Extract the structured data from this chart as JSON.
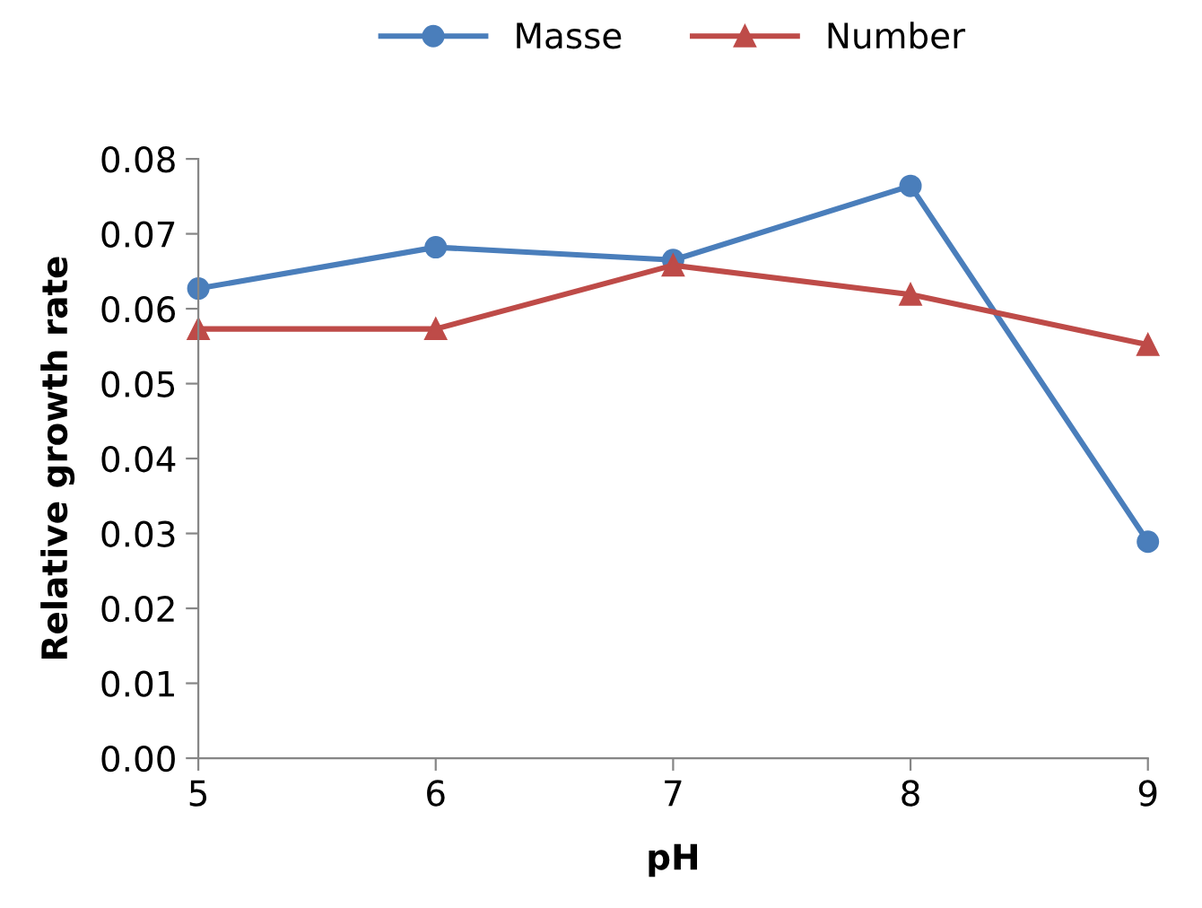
{
  "chart_data": {
    "type": "line",
    "xlabel": "pH",
    "ylabel": "Relative growth rate",
    "x": [
      5,
      6,
      7,
      8,
      9
    ],
    "series": [
      {
        "name": "Masse",
        "color": "#4a7ebb",
        "marker": "circle",
        "values": [
          0.0627,
          0.0682,
          0.0665,
          0.0764,
          0.0289
        ]
      },
      {
        "name": "Number",
        "color": "#be4b48",
        "marker": "triangle",
        "values": [
          0.0573,
          0.0573,
          0.0658,
          0.0619,
          0.0552
        ]
      }
    ],
    "xlim": [
      5,
      9
    ],
    "xticks": [
      5,
      6,
      7,
      8,
      9
    ],
    "ylim": [
      0,
      0.08
    ],
    "yticks": [
      {
        "value": 0,
        "label": "0.00"
      },
      {
        "value": 0.01,
        "label": "0.01"
      },
      {
        "value": 0.02,
        "label": "0.02"
      },
      {
        "value": 0.03,
        "label": "0.03"
      },
      {
        "value": 0.04,
        "label": "0.04"
      },
      {
        "value": 0.05,
        "label": "0.05"
      },
      {
        "value": 0.06,
        "label": "0.06"
      },
      {
        "value": 0.07,
        "label": "0.07"
      },
      {
        "value": 0.08,
        "label": "0.08"
      }
    ],
    "grid": false,
    "legend": "top",
    "line_style": "solid"
  }
}
